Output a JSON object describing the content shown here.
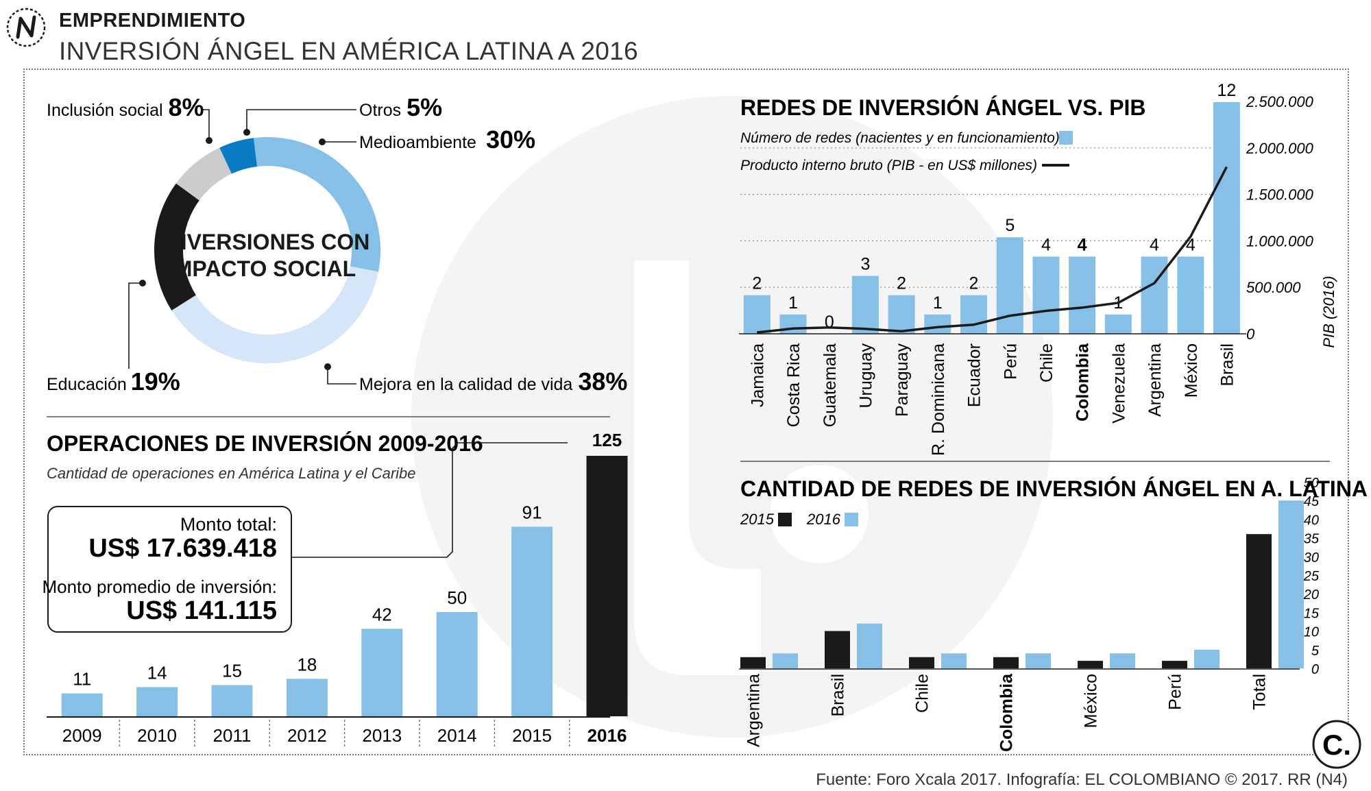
{
  "header": {
    "section": "EMPRENDIMIENTO",
    "title": "INVERSIÓN ÁNGEL EN AMÉRICA LATINA A 2016"
  },
  "footer": "Fuente: Foro Xcala 2017. Infografía: EL COLOMBIANO © 2017. RR (N4)",
  "logo_text": "C.",
  "colors": {
    "light_blue": "#86c0e6",
    "pale_blue": "#d4e6f7",
    "dark_blue": "#0b7bc6",
    "gray": "#cccccc",
    "black": "#1a1a1a"
  },
  "chart_data": [
    {
      "type": "pie",
      "title": "INVERSIONES CON IMPACTO SOCIAL",
      "title_lines": [
        "INVERSIONES CON",
        "IMPACTO SOCIAL"
      ],
      "slices": [
        {
          "label": "Medioambiente",
          "value": 30,
          "display": "30%",
          "color": "#86c0e6"
        },
        {
          "label": "Mejora en la calidad de vida",
          "value": 38,
          "display": "38%",
          "color": "#d4e6f7"
        },
        {
          "label": "Educación",
          "value": 19,
          "display": "19%",
          "color": "#1a1a1a"
        },
        {
          "label": "Inclusión social",
          "value": 8,
          "display": "8%",
          "color": "#cccccc"
        },
        {
          "label": "Otros",
          "value": 5,
          "display": "5%",
          "color": "#0b7bc6"
        }
      ]
    },
    {
      "type": "bar",
      "title": "OPERACIONES DE INVERSIÓN 2009-2016",
      "subtitle": "Cantidad de operaciones en América Latina y el Caribe",
      "categories": [
        "2009",
        "2010",
        "2011",
        "2012",
        "2013",
        "2014",
        "2015",
        "2016"
      ],
      "values": [
        11,
        14,
        15,
        18,
        42,
        50,
        91,
        125
      ],
      "highlight": "2016",
      "callout": {
        "total_label": "Monto total:",
        "total_value": "US$ 17.639.418",
        "avg_label": "Monto promedio de inversión:",
        "avg_value": "US$ 141.115"
      }
    },
    {
      "type": "bar",
      "title": "REDES DE INVERSIÓN ÁNGEL VS. PIB",
      "legend": [
        "Número de redes (nacientes y en funcionamiento)",
        "Producto interno bruto (PIB - en US$ millones)"
      ],
      "categories": [
        "Jamaica",
        "Costa Rica",
        "Guatemala",
        "Uruguay",
        "Paraguay",
        "R. Dominicana",
        "Ecuador",
        "Perú",
        "Chile",
        "Colombia",
        "Venezuela",
        "Argentina",
        "México",
        "Brasil"
      ],
      "highlight": "Colombia",
      "series": [
        {
          "name": "Número de redes",
          "values": [
            2,
            1,
            0,
            3,
            2,
            1,
            2,
            5,
            4,
            4,
            1,
            4,
            4,
            12
          ]
        },
        {
          "name": "PIB (2016)",
          "values": [
            15000,
            57000,
            68000,
            53000,
            27000,
            72000,
            98000,
            195000,
            247000,
            282000,
            333000,
            546000,
            1046000,
            1796000
          ]
        }
      ],
      "y2label": "PIB (2016)",
      "y2ticks": [
        "2.500.000",
        "2.000.000",
        "1.500.000",
        "1.000.000",
        "500.000",
        "0"
      ],
      "y2lim": [
        0,
        2500000
      ],
      "ylim": [
        0,
        13.9
      ]
    },
    {
      "type": "bar",
      "title": "CANTIDAD DE REDES DE INVERSIÓN ÁNGEL EN A. LATINA",
      "categories": [
        "Argentina",
        "Brasil",
        "Chile",
        "Colombia",
        "México",
        "Perú",
        "Total"
      ],
      "highlight": "Colombia",
      "series": [
        {
          "name": "2015",
          "values": [
            3,
            10,
            3,
            3,
            2,
            2,
            36
          ]
        },
        {
          "name": "2016",
          "values": [
            4,
            12,
            4,
            4,
            4,
            5,
            45
          ]
        }
      ],
      "yticks": [
        "50",
        "45",
        "40",
        "35",
        "30",
        "25",
        "20",
        "15",
        "10",
        "5",
        "0"
      ],
      "ylim": [
        0,
        50
      ]
    }
  ]
}
